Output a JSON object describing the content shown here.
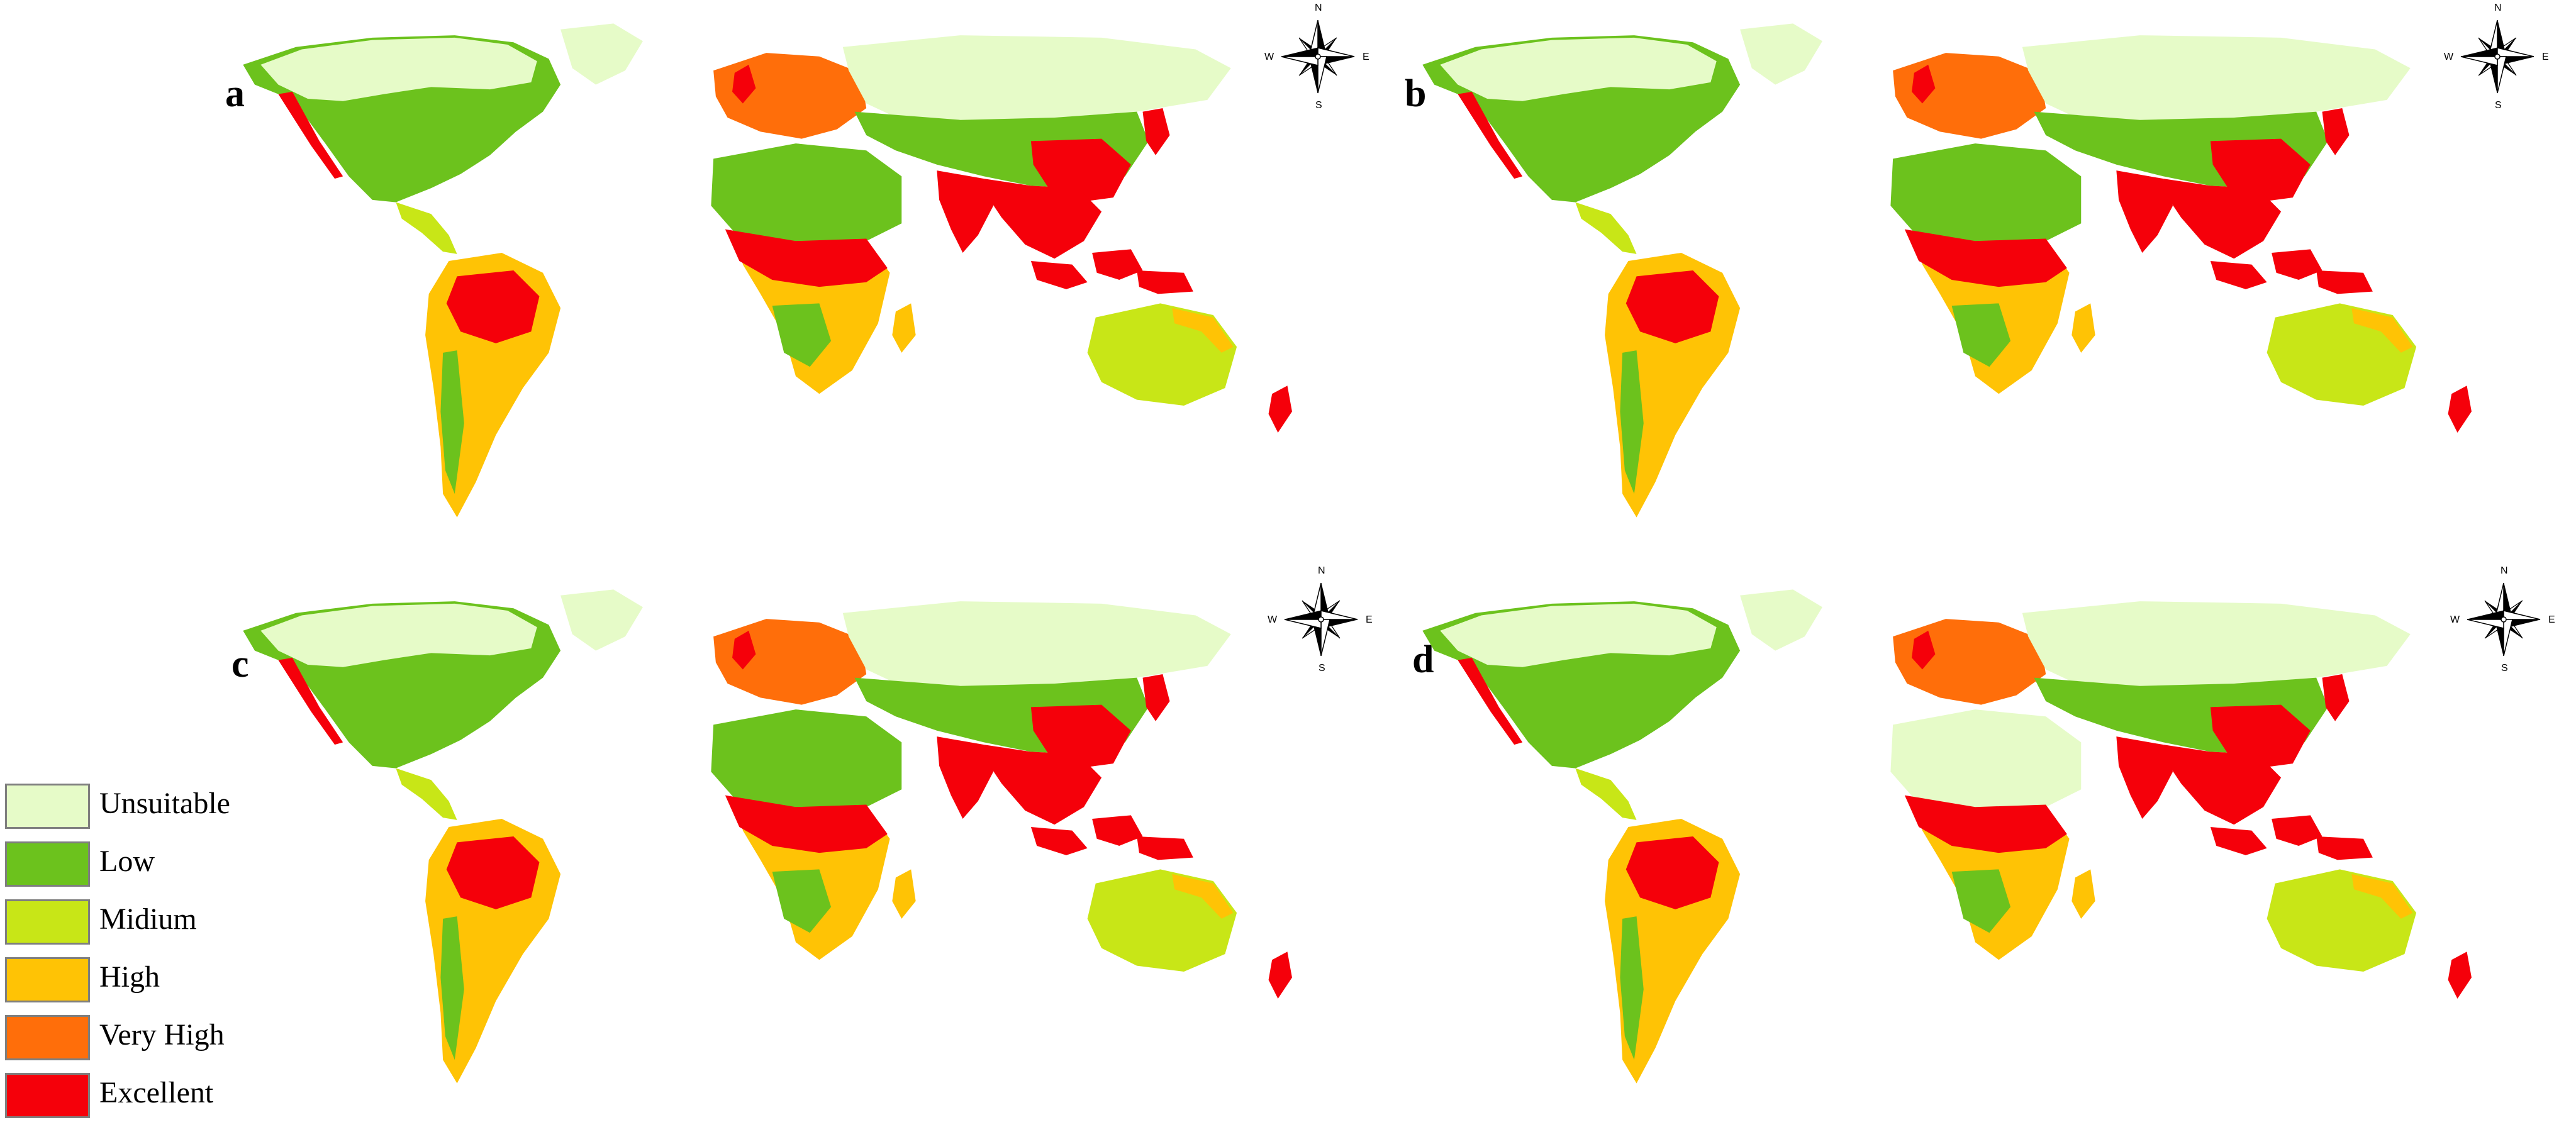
{
  "colors": {
    "unsuitable": "#e6fbc8",
    "low": "#6cc21d",
    "medium": "#c8e617",
    "high": "#ffc305",
    "very_high": "#ff6e0a",
    "excellent": "#f5000a"
  },
  "compass": {
    "north": "N",
    "south": "S",
    "east": "E",
    "west": "W"
  },
  "panels": [
    {
      "label": "a"
    },
    {
      "label": "b"
    },
    {
      "label": "c"
    },
    {
      "label": "d"
    }
  ],
  "legend": {
    "items": [
      {
        "label": "Unsuitable",
        "color": "#e6fbc8"
      },
      {
        "label": "Low",
        "color": "#6cc21d"
      },
      {
        "label": "Midium",
        "color": "#c8e617"
      },
      {
        "label": "High",
        "color": "#ffc305"
      },
      {
        "label": "Very High",
        "color": "#ff6e0a"
      },
      {
        "label": "Excellent",
        "color": "#f5000a"
      }
    ]
  }
}
